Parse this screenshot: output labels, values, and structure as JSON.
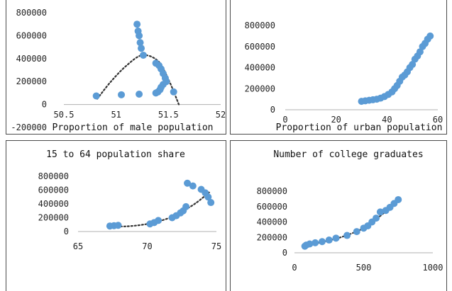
{
  "chart_data": [
    {
      "type": "scatter",
      "title": "",
      "xlabel": "Proportion of male population",
      "ylabel": "",
      "xlim": [
        50.5,
        52
      ],
      "ylim": [
        -200000,
        800000
      ],
      "xticks": [
        "50.5",
        "51",
        "51.5",
        "52"
      ],
      "yticks": [
        "-200000",
        "0",
        "200000",
        "400000",
        "600000",
        "800000"
      ],
      "grid": false,
      "trendline": "polynomial",
      "trend_points": [
        [
          50.82,
          50000
        ],
        [
          50.95,
          200000
        ],
        [
          51.1,
          340000
        ],
        [
          51.25,
          430000
        ],
        [
          51.4,
          380000
        ],
        [
          51.5,
          220000
        ],
        [
          51.6,
          0
        ]
      ],
      "points": [
        [
          50.81,
          75000
        ],
        [
          51.05,
          85000
        ],
        [
          51.22,
          90000
        ],
        [
          51.2,
          700000
        ],
        [
          51.21,
          640000
        ],
        [
          51.22,
          600000
        ],
        [
          51.23,
          540000
        ],
        [
          51.24,
          490000
        ],
        [
          51.26,
          430000
        ],
        [
          51.38,
          360000
        ],
        [
          51.41,
          340000
        ],
        [
          51.43,
          310000
        ],
        [
          51.45,
          270000
        ],
        [
          51.47,
          230000
        ],
        [
          51.48,
          200000
        ],
        [
          51.45,
          175000
        ],
        [
          51.43,
          150000
        ],
        [
          51.42,
          130000
        ],
        [
          51.4,
          110000
        ],
        [
          51.38,
          100000
        ],
        [
          51.55,
          110000
        ]
      ]
    },
    {
      "type": "scatter",
      "title": "",
      "xlabel": "Proportion of urban population",
      "ylabel": "",
      "xlim": [
        0,
        60
      ],
      "ylim": [
        0,
        800000
      ],
      "xticks": [
        "0",
        "20",
        "40",
        "60"
      ],
      "yticks": [
        "0",
        "200000",
        "400000",
        "600000",
        "800000"
      ],
      "grid": false,
      "trendline": "exponential",
      "trend_points": [
        [
          30,
          80000
        ],
        [
          35,
          100000
        ],
        [
          40,
          150000
        ],
        [
          44,
          230000
        ],
        [
          48,
          350000
        ],
        [
          52,
          500000
        ],
        [
          57,
          700000
        ]
      ],
      "points": [
        [
          30,
          80000
        ],
        [
          31.5,
          85000
        ],
        [
          33,
          90000
        ],
        [
          34.5,
          95000
        ],
        [
          36,
          100000
        ],
        [
          37.5,
          110000
        ],
        [
          39,
          125000
        ],
        [
          40.5,
          145000
        ],
        [
          42,
          170000
        ],
        [
          43,
          200000
        ],
        [
          44,
          230000
        ],
        [
          45,
          270000
        ],
        [
          46,
          310000
        ],
        [
          47,
          330000
        ],
        [
          48,
          360000
        ],
        [
          49,
          400000
        ],
        [
          50,
          430000
        ],
        [
          51,
          480000
        ],
        [
          52,
          510000
        ],
        [
          53,
          550000
        ],
        [
          54,
          600000
        ],
        [
          55,
          630000
        ],
        [
          56,
          670000
        ],
        [
          57,
          700000
        ]
      ]
    },
    {
      "type": "scatter",
      "title": "15 to 64 population share",
      "xlabel": "",
      "ylabel": "",
      "xlim": [
        65,
        75
      ],
      "ylim": [
        0,
        800000
      ],
      "xticks": [
        "65",
        "70",
        "75"
      ],
      "yticks": [
        "0",
        "200000",
        "400000",
        "600000",
        "800000"
      ],
      "grid": false,
      "trendline": "polynomial",
      "trend_points": [
        [
          67.3,
          80000
        ],
        [
          68.5,
          75000
        ],
        [
          70,
          110000
        ],
        [
          71.5,
          190000
        ],
        [
          72.5,
          290000
        ],
        [
          73.5,
          410000
        ],
        [
          74.5,
          570000
        ]
      ],
      "points": [
        [
          67.3,
          80000
        ],
        [
          67.6,
          85000
        ],
        [
          67.9,
          90000
        ],
        [
          70.2,
          110000
        ],
        [
          70.5,
          130000
        ],
        [
          70.8,
          160000
        ],
        [
          71.8,
          200000
        ],
        [
          72.1,
          230000
        ],
        [
          72.4,
          270000
        ],
        [
          72.6,
          300000
        ],
        [
          72.8,
          360000
        ],
        [
          72.9,
          700000
        ],
        [
          73.3,
          660000
        ],
        [
          73.9,
          610000
        ],
        [
          74.2,
          560000
        ],
        [
          74.4,
          500000
        ],
        [
          74.6,
          420000
        ]
      ]
    },
    {
      "type": "scatter",
      "title": "Number of college graduates",
      "xlabel": "",
      "ylabel": "",
      "xlim": [
        0,
        1000
      ],
      "ylim": [
        0,
        800000
      ],
      "xticks": [
        "0",
        "500",
        "1000"
      ],
      "yticks": [
        "0",
        "200000",
        "400000",
        "600000",
        "800000"
      ],
      "grid": false,
      "trendline": "exponential",
      "trend_points": [
        [
          75,
          90000
        ],
        [
          200,
          140000
        ],
        [
          350,
          210000
        ],
        [
          500,
          320000
        ],
        [
          600,
          450000
        ],
        [
          700,
          600000
        ],
        [
          750,
          690000
        ]
      ],
      "points": [
        [
          75,
          85000
        ],
        [
          85,
          100000
        ],
        [
          110,
          115000
        ],
        [
          150,
          130000
        ],
        [
          200,
          145000
        ],
        [
          250,
          165000
        ],
        [
          300,
          190000
        ],
        [
          380,
          225000
        ],
        [
          450,
          275000
        ],
        [
          500,
          320000
        ],
        [
          530,
          350000
        ],
        [
          560,
          400000
        ],
        [
          590,
          450000
        ],
        [
          620,
          530000
        ],
        [
          660,
          550000
        ],
        [
          690,
          590000
        ],
        [
          720,
          640000
        ],
        [
          750,
          690000
        ]
      ]
    }
  ]
}
